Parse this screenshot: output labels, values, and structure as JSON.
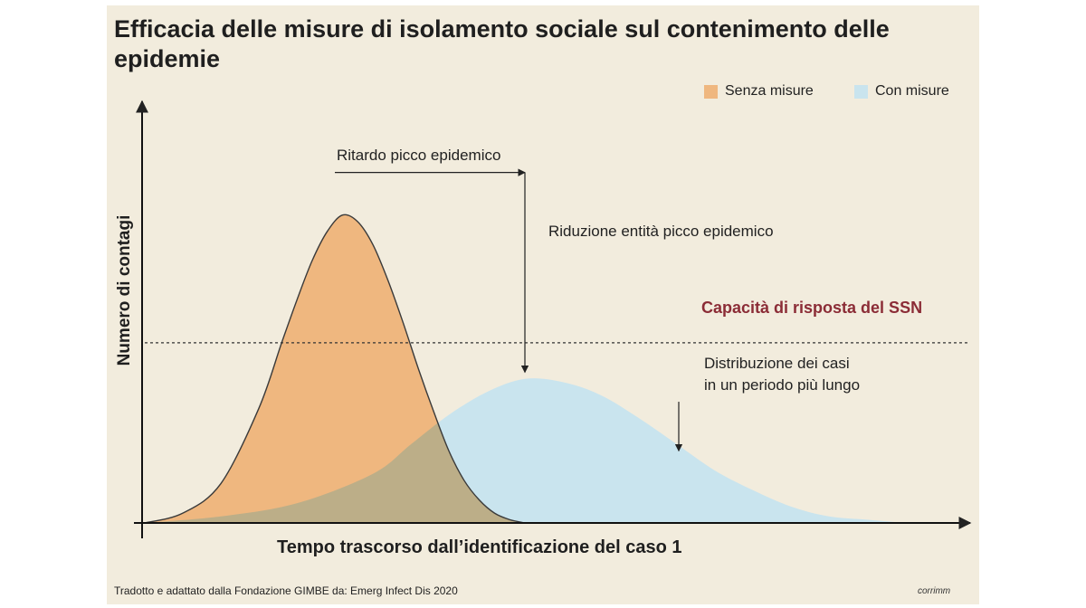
{
  "title": "Efficacia delle misure di isolamento sociale sul contenimento delle epidemie",
  "source": "Tradotto e adattato dalla Fondazione GIMBE da: Emerg Infect Dis 2020",
  "brand": "corrimm",
  "colors": {
    "background": "#f2ecdd",
    "senza_misure": "#efb77f",
    "con_misure": "#c9e4ee",
    "overlap": "#bcae88",
    "capacity": "#8b2c36"
  },
  "chart_data": {
    "type": "area",
    "xlabel": "Tempo trascorso dall’identificazione del caso 1",
    "ylabel": "Numero di contagi",
    "xlim": [
      0,
      100
    ],
    "ylim": [
      0,
      100
    ],
    "axis_ticks": false,
    "grid": false,
    "legend": {
      "placement": "top-right",
      "entries": [
        "Senza misure",
        "Con misure"
      ]
    },
    "series": [
      {
        "name": "Senza misure",
        "color": "#efb77f",
        "x": [
          0,
          5,
          10,
          15,
          18,
          20,
          22,
          24,
          26,
          28,
          30,
          32,
          34,
          36,
          38,
          40,
          42,
          44,
          46,
          48,
          50
        ],
        "y": [
          0,
          3,
          12,
          35,
          55,
          68,
          80,
          89,
          94,
          92,
          85,
          74,
          61,
          47,
          34,
          22,
          13,
          7,
          3,
          1,
          0
        ]
      },
      {
        "name": "Con misure",
        "color": "#c9e4ee",
        "x": [
          0,
          10,
          20,
          30,
          35,
          40,
          45,
          50,
          55,
          60,
          65,
          70,
          75,
          80,
          85,
          90,
          95,
          100
        ],
        "y": [
          0,
          2,
          6,
          15,
          24,
          33,
          40,
          44,
          43,
          39,
          32,
          24,
          16,
          10,
          5,
          2,
          1,
          0
        ]
      }
    ],
    "reference_line": {
      "label": "Capacità di risposta del SSN",
      "y": 55,
      "style": "dashed"
    },
    "annotations": [
      {
        "text": "Ritardo picco epidemico",
        "type": "arrow-right",
        "x_from": 25,
        "x_to": 50,
        "y": 107
      },
      {
        "text": "Riduzione entità picco epidemico",
        "type": "arrow-down",
        "x": 50,
        "y_from": 107,
        "y_to": 46
      },
      {
        "text": "Distribuzione dei casi",
        "text2": "in un periodo più lungo",
        "type": "arrow-down",
        "x": 70,
        "y_from": 37,
        "y_to": 22
      }
    ]
  }
}
